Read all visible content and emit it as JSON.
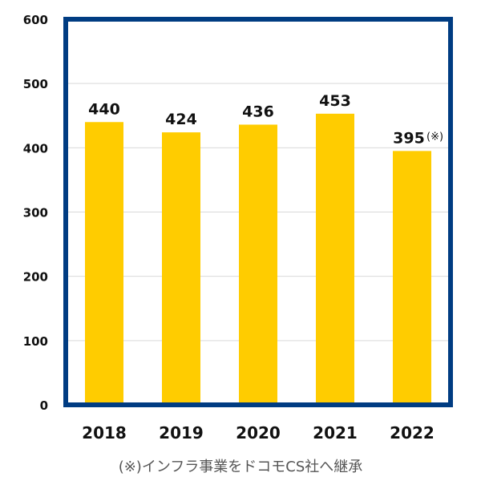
{
  "chart_data": {
    "type": "bar",
    "categories": [
      "2018",
      "2019",
      "2020",
      "2021",
      "2022"
    ],
    "values": [
      440,
      424,
      436,
      453,
      395
    ],
    "data_labels": [
      "440",
      "424",
      "436",
      "453",
      "395"
    ],
    "value_marks": [
      "",
      "",
      "",
      "",
      "(※)"
    ],
    "ylim": [
      0,
      600
    ],
    "yticks": [
      0,
      100,
      200,
      300,
      400,
      500,
      600
    ],
    "grid": true,
    "legend": "none"
  },
  "footnote": "(※)インフラ事業をドコモCS社へ継承",
  "colors": {
    "bar": "#FFCC00",
    "frame": "#003C82",
    "grid": "#D9D9D9",
    "text": "#111111"
  }
}
